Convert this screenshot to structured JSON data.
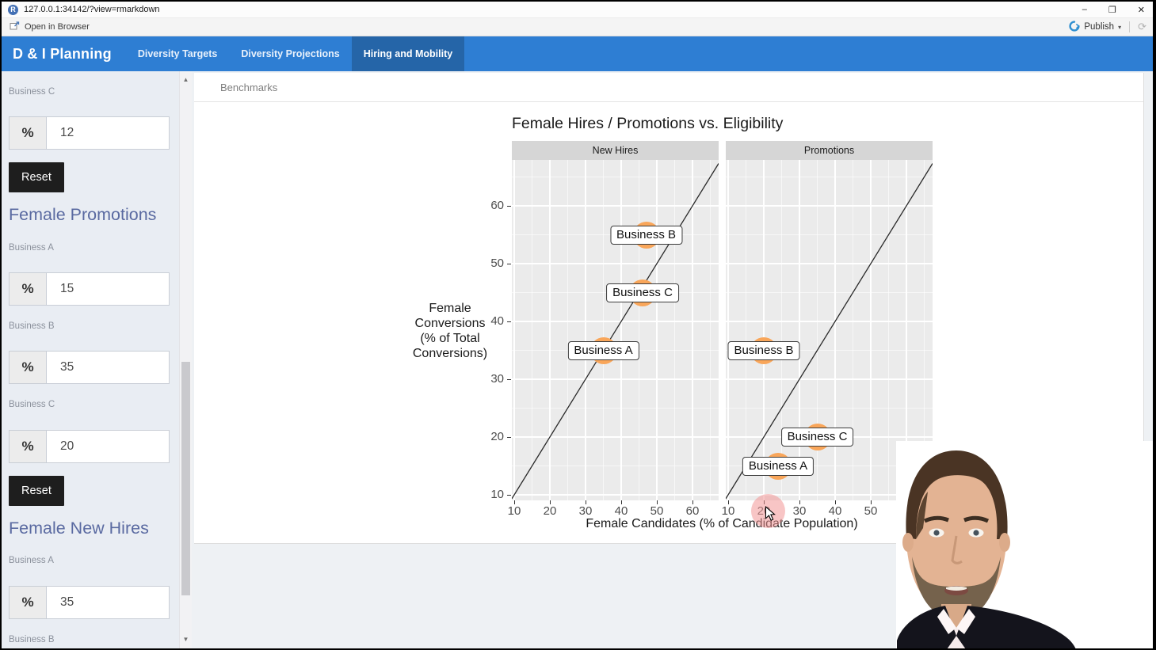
{
  "window": {
    "url": "127.0.0.1:34142/?view=rmarkdown",
    "controls": {
      "minimize": "–",
      "restore": "❐",
      "close": "✕"
    }
  },
  "toolbar": {
    "open_in_browser": "Open in Browser",
    "publish": "Publish",
    "caret": "▾",
    "reload": "⟳"
  },
  "navbar": {
    "brand": "D & I Planning",
    "tabs": [
      {
        "label": "Diversity Targets",
        "active": false
      },
      {
        "label": "Diversity Projections",
        "active": false
      },
      {
        "label": "Hiring and Mobility",
        "active": true
      }
    ]
  },
  "sidebar": {
    "percent_symbol": "%",
    "scrollbar": {
      "up": "▲",
      "down": "▼"
    },
    "sections": [
      {
        "heading": "",
        "fields": [
          {
            "label": "Business C",
            "value": "12"
          }
        ],
        "reset_label": "Reset"
      },
      {
        "heading": "Female Promotions",
        "fields": [
          {
            "label": "Business A",
            "value": "15"
          },
          {
            "label": "Business B",
            "value": "35"
          },
          {
            "label": "Business C",
            "value": "20"
          }
        ],
        "reset_label": "Reset"
      },
      {
        "heading": "Female New Hires",
        "fields": [
          {
            "label": "Business A",
            "value": "35"
          },
          {
            "label": "Business B",
            "value": ""
          }
        ]
      }
    ]
  },
  "main": {
    "panel_tab": "Benchmarks",
    "chart_data": {
      "type": "scatter",
      "title": "Female Hires / Promotions vs. Eligibility",
      "xlabel": "Female Candidates (% of Candidate Population)",
      "ylabel": "Female Conversions (% of Total Conversions)",
      "ylabel_lines": [
        "Female",
        "Conversions",
        "(% of Total",
        "Conversions)"
      ],
      "x_ticks": [
        10,
        20,
        30,
        40,
        50,
        60
      ],
      "y_ticks": [
        10,
        20,
        30,
        40,
        50,
        60
      ],
      "xlim": [
        9,
        67
      ],
      "ylim": [
        9,
        68
      ],
      "grid": true,
      "legend": "none",
      "panel_bg": "#ebebeb",
      "point_color": "#f9a65a",
      "reference_line": {
        "type": "identity",
        "equation": "y = x"
      },
      "facets": [
        {
          "name": "New Hires",
          "points": [
            {
              "label": "Business A",
              "x": 35,
              "y": 35
            },
            {
              "label": "Business B",
              "x": 47,
              "y": 55
            },
            {
              "label": "Business C",
              "x": 46,
              "y": 45
            }
          ]
        },
        {
          "name": "Promotions",
          "points": [
            {
              "label": "Business A",
              "x": 24,
              "y": 15
            },
            {
              "label": "Business B",
              "x": 20,
              "y": 35
            },
            {
              "label": "Business C",
              "x": 35,
              "y": 20
            }
          ]
        }
      ]
    }
  }
}
